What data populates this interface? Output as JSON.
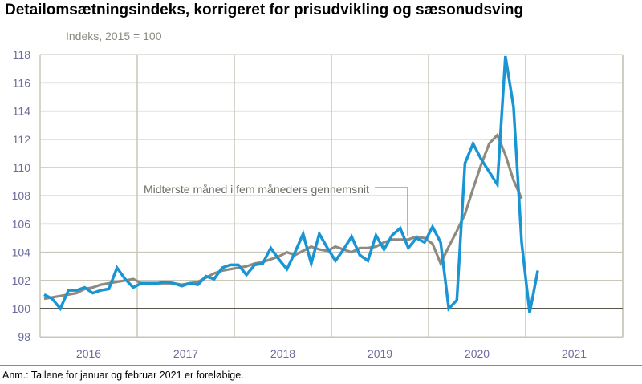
{
  "chart_data": {
    "type": "line",
    "title": "Detailomsætningsindeks, korrigeret for prisudvikling og sæsonudsving",
    "ylabel": "Indeks, 2015 = 100",
    "xlabel": "",
    "ylim": [
      98,
      118
    ],
    "yticks": [
      "98",
      "100",
      "102",
      "104",
      "106",
      "108",
      "110",
      "112",
      "114",
      "116",
      "118"
    ],
    "xticks": [
      "2016",
      "2017",
      "2018",
      "2019",
      "2020",
      "2021"
    ],
    "x_start": "2016-01",
    "frequency": "monthly",
    "grid": true,
    "reference_line": 100,
    "annotation": "Midterste måned i fem måneders gennemsnit",
    "series": [
      {
        "color": "#1a95d4",
        "values": [
          101.0,
          100.7,
          100.0,
          101.3,
          101.3,
          101.5,
          101.1,
          101.3,
          101.4,
          102.9,
          102.1,
          101.5,
          101.8,
          101.8,
          101.8,
          101.9,
          101.8,
          101.6,
          101.8,
          101.7,
          102.3,
          102.1,
          102.9,
          103.1,
          103.1,
          102.4,
          103.1,
          103.2,
          104.3,
          103.5,
          102.8,
          104.0,
          105.3,
          103.2,
          105.3,
          104.3,
          103.4,
          104.2,
          105.1,
          103.8,
          103.4,
          105.2,
          104.2,
          105.2,
          105.7,
          104.3,
          105.0,
          104.7,
          105.8,
          104.7,
          100.0,
          100.6,
          110.3,
          111.7,
          110.6,
          109.7,
          108.8,
          117.9,
          114.3,
          104.7,
          99.7,
          102.7
        ]
      },
      {
        "color": "#8f8a7f",
        "values": [
          100.7,
          100.8,
          100.9,
          101.0,
          101.1,
          101.4,
          101.5,
          101.7,
          101.8,
          101.9,
          102.0,
          102.1,
          101.8,
          101.8,
          101.8,
          101.8,
          101.8,
          101.7,
          101.8,
          101.9,
          102.2,
          102.5,
          102.7,
          102.8,
          102.9,
          103.0,
          103.2,
          103.3,
          103.5,
          103.7,
          104.0,
          103.8,
          104.1,
          104.4,
          104.2,
          104.1,
          104.4,
          104.2,
          104.0,
          104.3,
          104.3,
          104.4,
          104.7,
          104.9,
          104.9,
          104.9,
          105.1,
          105.0,
          104.6,
          103.2,
          104.4,
          105.5,
          106.7,
          108.5,
          110.2,
          111.7,
          112.3,
          110.9,
          109.1,
          107.8
        ]
      }
    ]
  },
  "footnote": "Anm.: Tallene for januar og februar 2021 er foreløbige."
}
